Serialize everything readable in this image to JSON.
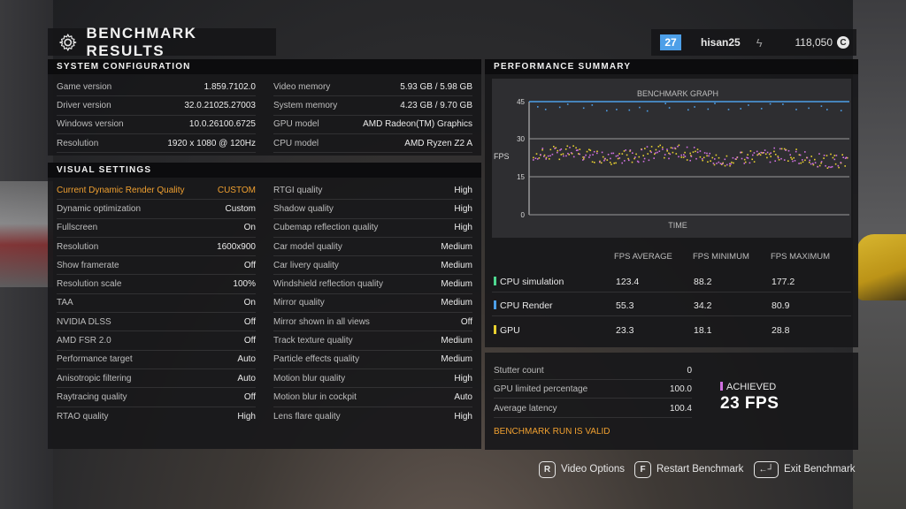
{
  "header": {
    "title": "BENCHMARK RESULTS",
    "level": "27",
    "username": "hisan25",
    "credits": "118,050",
    "credit_symbol": "C"
  },
  "system": {
    "heading": "SYSTEM CONFIGURATION",
    "left": [
      {
        "label": "Game version",
        "value": "1.859.7102.0"
      },
      {
        "label": "Driver version",
        "value": "32.0.21025.27003"
      },
      {
        "label": "Windows version",
        "value": "10.0.26100.6725"
      },
      {
        "label": "Resolution",
        "value": "1920 x 1080 @ 120Hz"
      }
    ],
    "right": [
      {
        "label": "Video memory",
        "value": "5.93 GB / 5.98 GB"
      },
      {
        "label": "System memory",
        "value": "4.23 GB / 9.70 GB"
      },
      {
        "label": "GPU model",
        "value": "AMD Radeon(TM) Graphics"
      },
      {
        "label": "CPU model",
        "value": "AMD Ryzen Z2 A"
      }
    ]
  },
  "visual": {
    "heading": "VISUAL SETTINGS",
    "left": [
      {
        "label": "Current Dynamic Render Quality",
        "value": "CUSTOM"
      },
      {
        "label": "Dynamic optimization",
        "value": "Custom"
      },
      {
        "label": "Fullscreen",
        "value": "On"
      },
      {
        "label": "Resolution",
        "value": "1600x900"
      },
      {
        "label": "Show framerate",
        "value": "Off"
      },
      {
        "label": "Resolution scale",
        "value": "100%"
      },
      {
        "label": "TAA",
        "value": "On"
      },
      {
        "label": "NVIDIA DLSS",
        "value": "Off"
      },
      {
        "label": "AMD FSR 2.0",
        "value": "Off"
      },
      {
        "label": "Performance target",
        "value": "Auto"
      },
      {
        "label": "Anisotropic filtering",
        "value": "Auto"
      },
      {
        "label": "Raytracing quality",
        "value": "Off"
      },
      {
        "label": "RTAO quality",
        "value": "High"
      }
    ],
    "right": [
      {
        "label": "RTGI quality",
        "value": "High"
      },
      {
        "label": "Shadow quality",
        "value": "High"
      },
      {
        "label": "Cubemap reflection quality",
        "value": "High"
      },
      {
        "label": "Car model quality",
        "value": "Medium"
      },
      {
        "label": "Car livery quality",
        "value": "Medium"
      },
      {
        "label": "Windshield reflection quality",
        "value": "Medium"
      },
      {
        "label": "Mirror quality",
        "value": "Medium"
      },
      {
        "label": "Mirror shown in all views",
        "value": "Off"
      },
      {
        "label": "Track texture quality",
        "value": "Medium"
      },
      {
        "label": "Particle effects quality",
        "value": "Medium"
      },
      {
        "label": "Motion blur quality",
        "value": "High"
      },
      {
        "label": "Motion blur in cockpit",
        "value": "Auto"
      },
      {
        "label": "Lens flare quality",
        "value": "High"
      }
    ]
  },
  "performance": {
    "heading": "PERFORMANCE SUMMARY",
    "graph_title": "BENCHMARK GRAPH",
    "y_label": "FPS",
    "x_label": "TIME",
    "y_ticks": [
      "45",
      "30",
      "15",
      "0"
    ],
    "col_avg": "FPS AVERAGE",
    "col_min": "FPS MINIMUM",
    "col_max": "FPS MAXIMUM",
    "rows": [
      {
        "name": "CPU simulation",
        "avg": "123.4",
        "min": "88.2",
        "max": "177.2",
        "color": "#4fd890"
      },
      {
        "name": "CPU Render",
        "avg": "55.3",
        "min": "34.2",
        "max": "80.9",
        "color": "#4d9fe8"
      },
      {
        "name": "GPU",
        "avg": "23.3",
        "min": "18.1",
        "max": "28.8",
        "color": "#e8d030"
      }
    ]
  },
  "misc": {
    "rows": [
      {
        "label": "Stutter count",
        "value": "0"
      },
      {
        "label": "GPU limited percentage",
        "value": "100.0"
      },
      {
        "label": "Average latency",
        "value": "100.4"
      }
    ],
    "valid": "BENCHMARK RUN IS VALID",
    "achieved_label": "ACHIEVED",
    "achieved_value": "23 FPS"
  },
  "footer": {
    "video_key": "R",
    "video_label": "Video Options",
    "restart_key": "F",
    "restart_label": "Restart Benchmark",
    "exit_key": "←┘",
    "exit_label": "Exit Benchmark"
  },
  "chart_data": {
    "type": "scatter",
    "title": "BENCHMARK GRAPH",
    "xlabel": "TIME",
    "ylabel": "FPS",
    "ylim": [
      0,
      45
    ],
    "y_ticks": [
      0,
      15,
      30,
      45
    ],
    "reference_lines": [
      45,
      30,
      15
    ],
    "series": [
      {
        "color": "#4d9fe8",
        "band": [
          41,
          45
        ]
      },
      {
        "color": "#e8d030",
        "band": [
          20,
          27
        ]
      },
      {
        "color": "#d070e0",
        "band": [
          20,
          27
        ]
      }
    ]
  }
}
